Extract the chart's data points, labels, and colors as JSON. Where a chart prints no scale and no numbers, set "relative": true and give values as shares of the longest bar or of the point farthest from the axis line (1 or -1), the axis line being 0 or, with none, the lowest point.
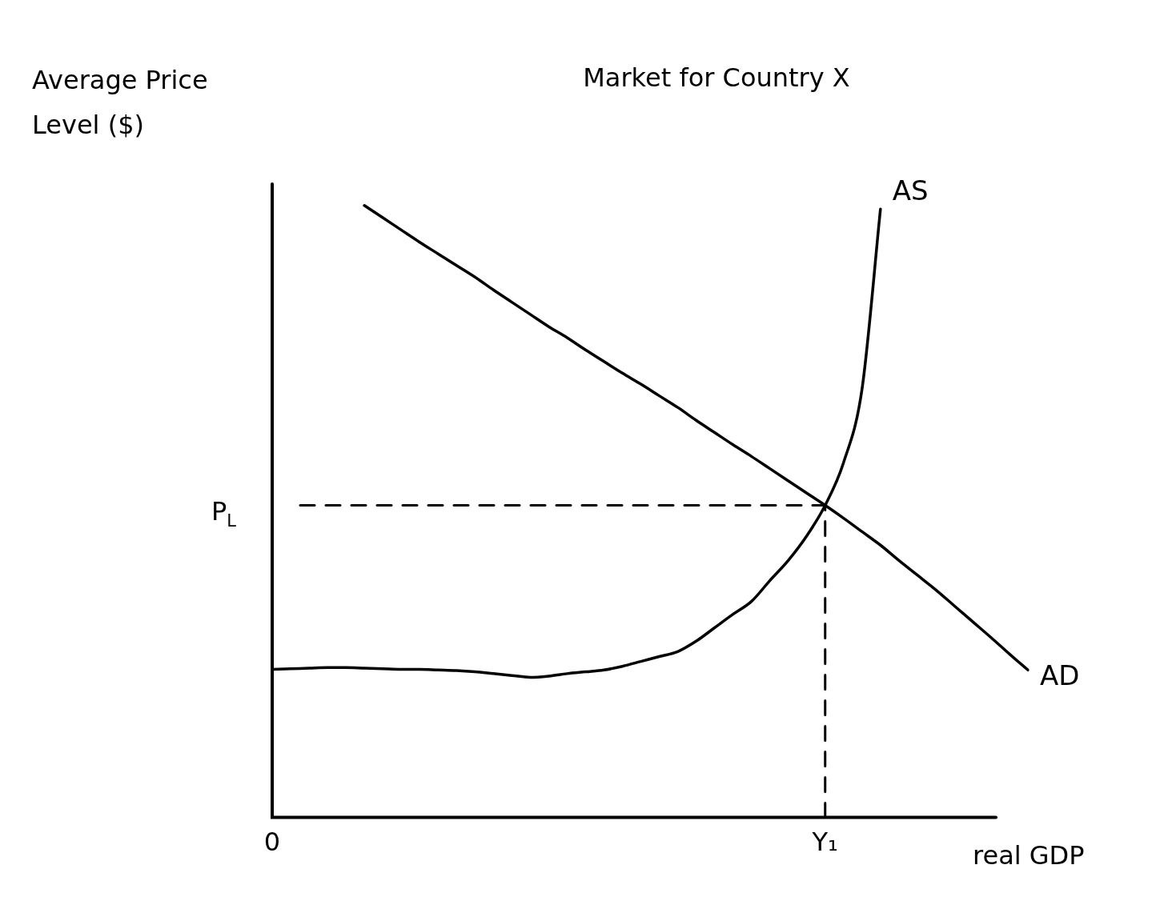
{
  "chart_data": {
    "type": "line",
    "title": "Market for Country X",
    "xlabel": "real GDP",
    "ylabel": "Average Price Level ($)",
    "relative": true,
    "legend": false,
    "grid": false,
    "marker": "none",
    "categories": [
      "0",
      null,
      null,
      null,
      null,
      null,
      null,
      null,
      null,
      null,
      null,
      null,
      null,
      null,
      null,
      null,
      null,
      null,
      null,
      null,
      null,
      null,
      null,
      null,
      null,
      null,
      null,
      null,
      null,
      null,
      "Y₁",
      null,
      null,
      null,
      null,
      null,
      null,
      null,
      null,
      null,
      null,
      null
    ],
    "series": [
      {
        "name": "AS",
        "color": "#000000",
        "values": [
          0.242,
          0.243,
          0.244,
          0.245,
          0.245,
          0.244,
          0.243,
          0.242,
          0.242,
          0.241,
          0.24,
          0.238,
          0.235,
          0.232,
          0.229,
          0.231,
          0.235,
          0.238,
          0.241,
          0.247,
          0.255,
          0.263,
          0.271,
          0.288,
          0.31,
          0.332,
          0.353,
          0.387,
          0.42,
          0.46,
          0.51,
          0.58,
          0.7,
          0.994,
          null,
          null,
          null,
          null,
          null,
          null,
          null,
          null
        ]
      },
      {
        "name": "AD",
        "color": "#000000",
        "values": [
          null,
          null,
          null,
          null,
          null,
          1.0,
          0.98,
          0.96,
          0.94,
          0.921,
          0.902,
          0.883,
          0.862,
          0.842,
          0.822,
          0.802,
          0.784,
          0.764,
          0.745,
          0.726,
          0.708,
          0.689,
          0.67,
          0.649,
          0.629,
          0.609,
          0.59,
          0.57,
          0.55,
          0.53,
          0.51,
          0.489,
          0.467,
          0.445,
          0.42,
          0.396,
          0.372,
          0.346,
          0.32,
          0.294,
          0.267,
          0.241
        ]
      }
    ],
    "ref_lines": [
      {
        "axis": "y",
        "value": 0.51,
        "label": "P$_{L}$",
        "line_style": "dashed",
        "color": "#000000"
      },
      {
        "axis": "x",
        "value": "Y₁",
        "line_style": "dashed",
        "color": "#000000"
      }
    ]
  }
}
